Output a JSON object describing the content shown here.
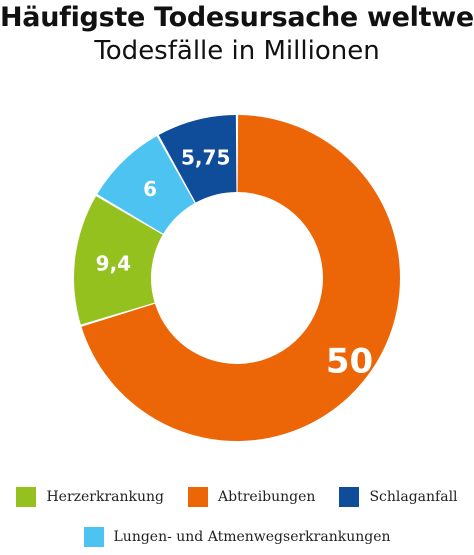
{
  "chart_data": {
    "type": "pie",
    "title": "Häufigste Todesursache weltweit",
    "subtitle": "Todesfälle in Millionen",
    "donut": true,
    "start_angle_deg": 0,
    "direction": "clockwise",
    "legend_position": "bottom",
    "slices": [
      {
        "label": "Abtreibungen",
        "value": 50,
        "display": "50",
        "color": "#EC6608",
        "label_color": "#ffffff"
      },
      {
        "label": "Herzerkrankung",
        "value": 9.4,
        "display": "9,4",
        "color": "#95C11F",
        "label_color": "#ffffff"
      },
      {
        "label": "Lungen- und Atmenwegserkrankungen",
        "value": 6,
        "display": "6",
        "color": "#4CC3F1",
        "label_color": "#ffffff"
      },
      {
        "label": "Schlaganfall",
        "value": 5.75,
        "display": "5,75",
        "color": "#0F4C9A",
        "label_color": "#ffffff"
      }
    ]
  },
  "legend": {
    "row1": [
      {
        "label": "Herzerkrankung",
        "color": "#95C11F"
      },
      {
        "label": "Abtreibungen",
        "color": "#EC6608"
      },
      {
        "label": "Schlaganfall",
        "color": "#0F4C9A"
      }
    ],
    "row2": [
      {
        "label": "Lungen- und Atmenwegserkrankungen",
        "color": "#4CC3F1"
      }
    ]
  }
}
